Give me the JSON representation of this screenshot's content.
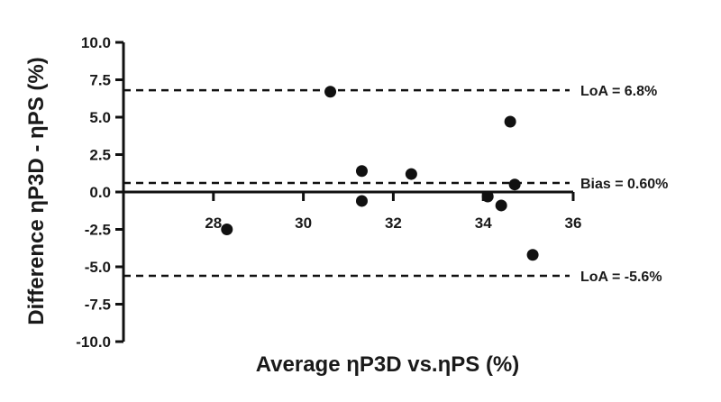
{
  "chart_data": {
    "type": "scatter",
    "title": "",
    "xlabel": "Average ηP3D vs.ηPS (%)",
    "ylabel": "Difference ηP3D - ηPS (%)",
    "xlim": [
      26,
      36
    ],
    "ylim": [
      -10,
      10
    ],
    "x_ticks": [
      28,
      30,
      32,
      34,
      36
    ],
    "x_tick_labels": [
      "28",
      "30",
      "32",
      "34",
      "36"
    ],
    "y_ticks": [
      10,
      7.5,
      5,
      2.5,
      0,
      -2.5,
      -5,
      -7.5,
      -10
    ],
    "y_tick_labels": [
      "10.0",
      "7.5",
      "5.0",
      "2.5",
      "0.0",
      "-2.5",
      "-5.0",
      "-7.5",
      "-10.0"
    ],
    "grid": false,
    "series": [
      {
        "points": [
          {
            "x": 28.3,
            "y": -2.5
          },
          {
            "x": 30.6,
            "y": 6.7
          },
          {
            "x": 31.3,
            "y": 1.4
          },
          {
            "x": 31.3,
            "y": -0.6
          },
          {
            "x": 32.4,
            "y": 1.2
          },
          {
            "x": 34.1,
            "y": -0.3
          },
          {
            "x": 34.4,
            "y": -0.9
          },
          {
            "x": 34.6,
            "y": 4.7
          },
          {
            "x": 34.7,
            "y": 0.5
          },
          {
            "x": 35.1,
            "y": -4.2
          }
        ]
      }
    ],
    "reference_lines": [
      {
        "y": 6.8,
        "label": "LoA = 6.8%",
        "style": "dashed"
      },
      {
        "y": 0.6,
        "label": "Bias = 0.60%",
        "style": "dashed"
      },
      {
        "y": -5.6,
        "label": "LoA = -5.6%",
        "style": "dashed"
      }
    ],
    "colors": {
      "marker": "#111111",
      "axis": "#111111",
      "line": "#111111"
    }
  }
}
